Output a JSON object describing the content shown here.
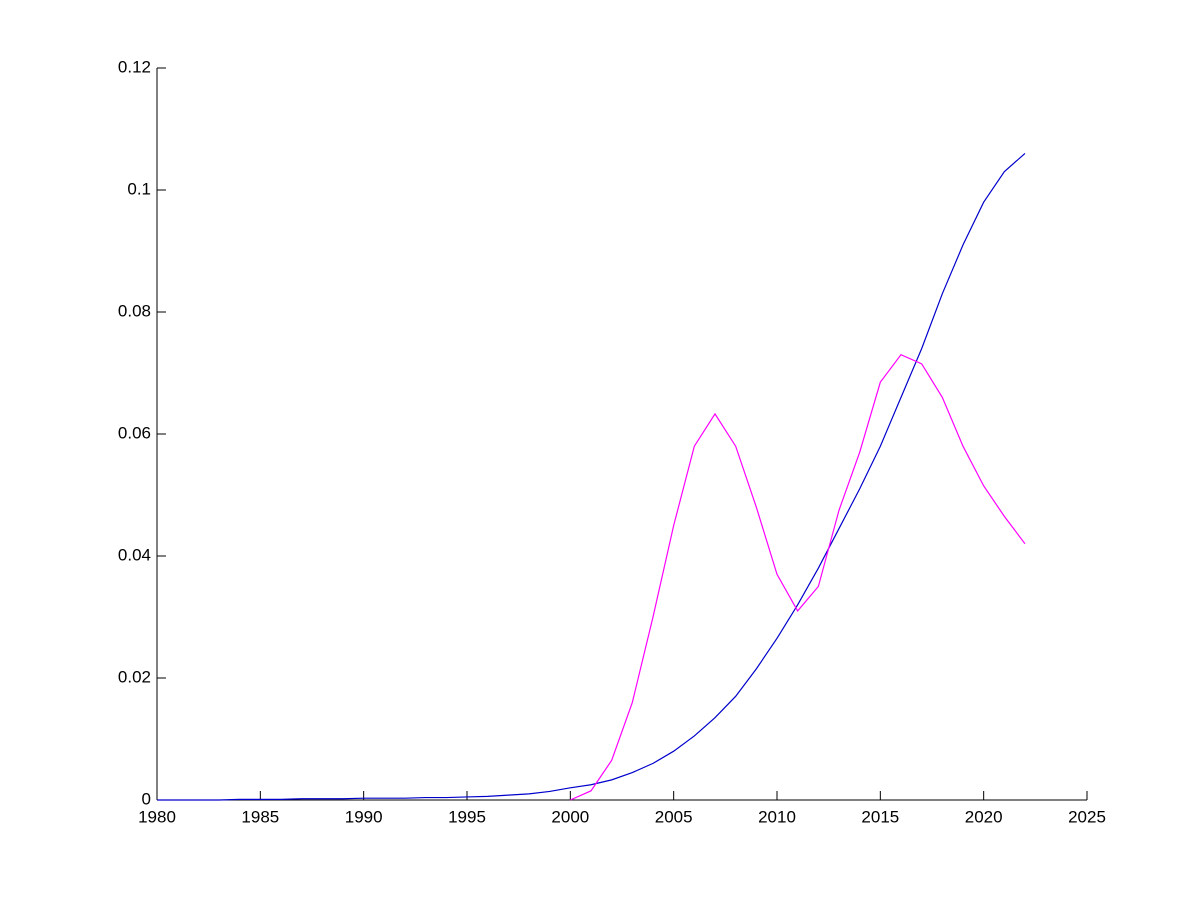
{
  "chart_data": {
    "type": "line",
    "series": [
      {
        "color": "#0000cc",
        "x": [
          1980,
          1981,
          1982,
          1983,
          1984,
          1985,
          1986,
          1987,
          1988,
          1989,
          1990,
          1991,
          1992,
          1993,
          1994,
          1995,
          1996,
          1997,
          1998,
          1999,
          2000,
          2001,
          2002,
          2003,
          2004,
          2005,
          2006,
          2007,
          2008,
          2009,
          2010,
          2011,
          2012,
          2013,
          2014,
          2015,
          2016,
          2017,
          2018,
          2019,
          2020,
          2021,
          2022
        ],
        "values": [
          0,
          0,
          0,
          0,
          0.0001,
          0.0001,
          0.0001,
          0.0002,
          0.0002,
          0.0002,
          0.0003,
          0.0003,
          0.0003,
          0.0004,
          0.0004,
          0.0005,
          0.0006,
          0.0008,
          0.001,
          0.0014,
          0.002,
          0.0025,
          0.0033,
          0.0045,
          0.006,
          0.008,
          0.0105,
          0.0135,
          0.017,
          0.0215,
          0.0265,
          0.032,
          0.038,
          0.0445,
          0.051,
          0.058,
          0.066,
          0.074,
          0.083,
          0.091,
          0.098,
          0.103,
          0.106
        ]
      },
      {
        "color": "#ff00ff",
        "x": [
          2000,
          2001,
          2002,
          2003,
          2004,
          2005,
          2006,
          2007,
          2008,
          2009,
          2010,
          2011,
          2012,
          2013,
          2014,
          2015,
          2016,
          2017,
          2018,
          2019,
          2020,
          2021,
          2022
        ],
        "values": [
          0,
          0.0015,
          0.0065,
          0.016,
          0.03,
          0.045,
          0.058,
          0.0633,
          0.058,
          0.048,
          0.037,
          0.031,
          0.035,
          0.0475,
          0.057,
          0.0685,
          0.073,
          0.0715,
          0.066,
          0.058,
          0.0515,
          0.0465,
          0.042
        ]
      }
    ],
    "xlim": [
      1980,
      2025
    ],
    "xticks": [
      1980,
      1985,
      1990,
      1995,
      2000,
      2005,
      2010,
      2015,
      2020,
      2025
    ],
    "ylim": [
      0,
      0.12
    ],
    "yticks": [
      0,
      0.02,
      0.04,
      0.06,
      0.08,
      0.1,
      0.12
    ]
  }
}
